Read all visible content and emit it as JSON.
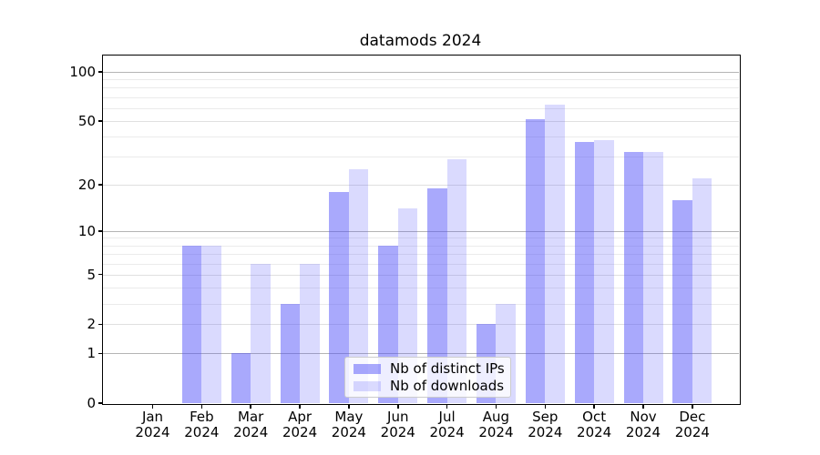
{
  "figure": {
    "title": "datamods 2024"
  },
  "chart_data": {
    "type": "bar",
    "title": "datamods 2024",
    "xlabel": "",
    "ylabel": "",
    "yscale": "log1p",
    "ylim": [
      0,
      126
    ],
    "grid": true,
    "legend_position": "lower-center",
    "categories": [
      {
        "month": "Jan",
        "year": "2024"
      },
      {
        "month": "Feb",
        "year": "2024"
      },
      {
        "month": "Mar",
        "year": "2024"
      },
      {
        "month": "Apr",
        "year": "2024"
      },
      {
        "month": "May",
        "year": "2024"
      },
      {
        "month": "Jun",
        "year": "2024"
      },
      {
        "month": "Jul",
        "year": "2024"
      },
      {
        "month": "Aug",
        "year": "2024"
      },
      {
        "month": "Sep",
        "year": "2024"
      },
      {
        "month": "Oct",
        "year": "2024"
      },
      {
        "month": "Nov",
        "year": "2024"
      },
      {
        "month": "Dec",
        "year": "2024"
      }
    ],
    "series": [
      {
        "name": "Nb of distinct IPs",
        "css": "rgba(80,80,248,0.49)",
        "flat_hex": "#a9a9fa",
        "values": [
          0,
          8,
          1,
          3,
          18,
          8,
          19,
          2,
          51,
          37,
          32,
          16
        ]
      },
      {
        "name": "Nb of downloads",
        "css": "rgba(80,80,248,0.21)",
        "flat_hex": "#dadafb",
        "values": [
          0,
          8,
          6,
          6,
          25,
          14,
          29,
          3,
          63,
          38,
          32,
          22
        ]
      }
    ],
    "y_major_ticks": [
      0,
      1,
      2,
      5,
      10,
      20,
      50,
      100
    ],
    "y_decade_ticks": [
      1,
      10,
      100
    ],
    "y_minor_gridlines": [
      3,
      4,
      6,
      7,
      8,
      9,
      30,
      40,
      60,
      70,
      80,
      90
    ],
    "colors": {
      "grid_decade": "#b4b4b4",
      "grid_labeled": "#e0e0e0",
      "grid_minor": "#ebebeb",
      "spine": "#000000",
      "text": "#000000",
      "legend_border": "#cccccc"
    }
  }
}
